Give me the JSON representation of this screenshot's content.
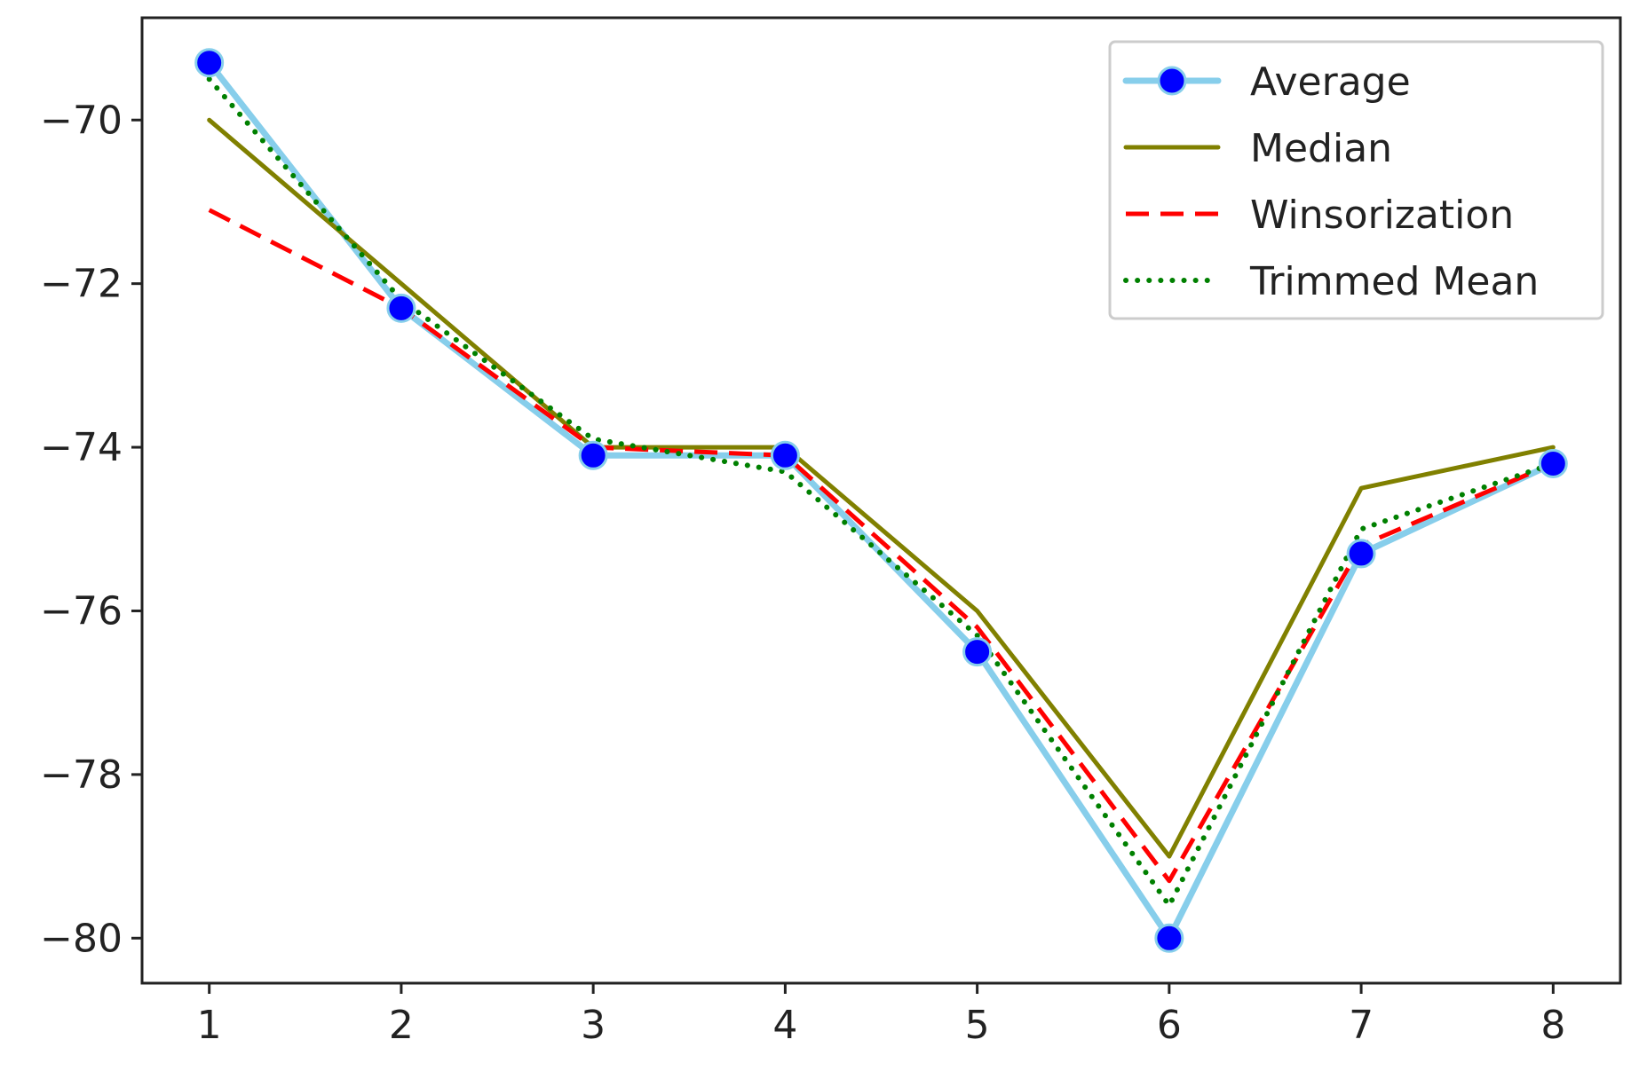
{
  "chart_data": {
    "type": "line",
    "x": [
      1,
      2,
      3,
      4,
      5,
      6,
      7,
      8
    ],
    "xlim": [
      0.65,
      8.35
    ],
    "ylim": [
      -80.55,
      -68.75
    ],
    "xticks": [
      1,
      2,
      3,
      4,
      5,
      6,
      7,
      8
    ],
    "yticks": [
      -70,
      -72,
      -74,
      -76,
      -78,
      -80
    ],
    "ytick_labels": [
      "−70",
      "−72",
      "−74",
      "−76",
      "−78",
      "−80"
    ],
    "legend_position": "top-right",
    "grid": false,
    "series": [
      {
        "name": "Average",
        "values": [
          -69.3,
          -72.3,
          -74.1,
          -74.1,
          -76.5,
          -80.0,
          -75.3,
          -74.2
        ],
        "color": "#87ceeb",
        "marker_color": "#0000ff",
        "style": "solid-with-markers"
      },
      {
        "name": "Median",
        "values": [
          -70.0,
          -72.0,
          -74.0,
          -74.0,
          -76.0,
          -79.0,
          -74.5,
          -74.0
        ],
        "color": "#808000",
        "style": "solid"
      },
      {
        "name": "Winsorization",
        "values": [
          -71.1,
          -72.3,
          -74.0,
          -74.1,
          -76.2,
          -79.3,
          -75.2,
          -74.2
        ],
        "color": "#ff0000",
        "style": "dashed"
      },
      {
        "name": "Trimmed Mean",
        "values": [
          -69.5,
          -72.2,
          -73.9,
          -74.3,
          -76.3,
          -79.6,
          -75.0,
          -74.2
        ],
        "color": "#008000",
        "style": "dotted"
      }
    ]
  }
}
